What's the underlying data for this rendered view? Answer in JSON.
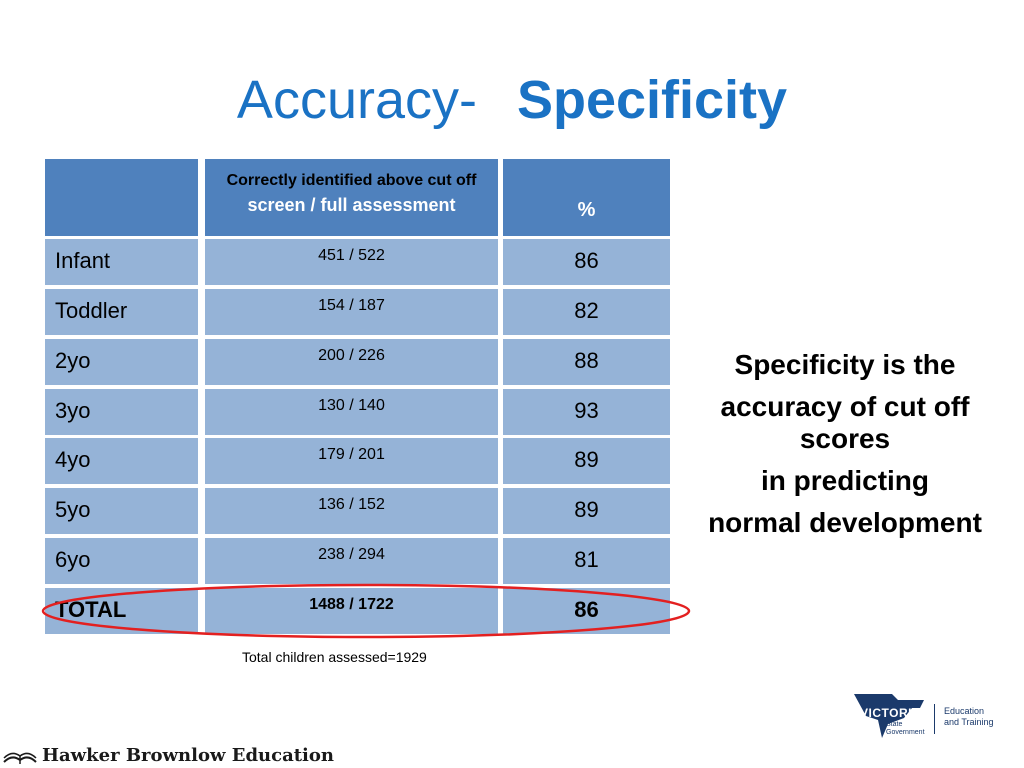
{
  "title": {
    "part1": "Accuracy-",
    "part2": "Specificity"
  },
  "table": {
    "header": {
      "col1": "",
      "col2_line1": "Correctly identified above cut off",
      "col2_line2": "screen / full assessment",
      "col3": "%"
    },
    "rows": [
      {
        "label": "Infant",
        "ratio": "451   /   522",
        "pct": "86"
      },
      {
        "label": "Toddler",
        "ratio": "154    /   187",
        "pct": "82"
      },
      {
        "label": "2yo",
        "ratio": "200    /    226",
        "pct": "88"
      },
      {
        "label": "3yo",
        "ratio": "130    /    140",
        "pct": "93"
      },
      {
        "label": "4yo",
        "ratio": "179    /   201",
        "pct": "89"
      },
      {
        "label": "5yo",
        "ratio": "136   /   152",
        "pct": "89"
      },
      {
        "label": "6yo",
        "ratio": "238   /   294",
        "pct": "81"
      },
      {
        "label": "TOTAL",
        "ratio": "1488    /   1722",
        "pct": "86"
      }
    ]
  },
  "note": "Total children assessed=1929",
  "side_text": [
    "Specificity is the",
    "accuracy of cut off",
    "scores",
    "in predicting",
    "normal development"
  ],
  "footer": {
    "brand": "Hawker Brownlow Education"
  },
  "vic_logo": {
    "word": "VICTORIA",
    "sub1": "State",
    "sub2": "Government",
    "edu1": "Education",
    "edu2": "and Training"
  },
  "colors": {
    "title": "#1a72c4",
    "header": "#4f81bd",
    "body": "#95b3d7",
    "ellipse": "#e32020"
  }
}
